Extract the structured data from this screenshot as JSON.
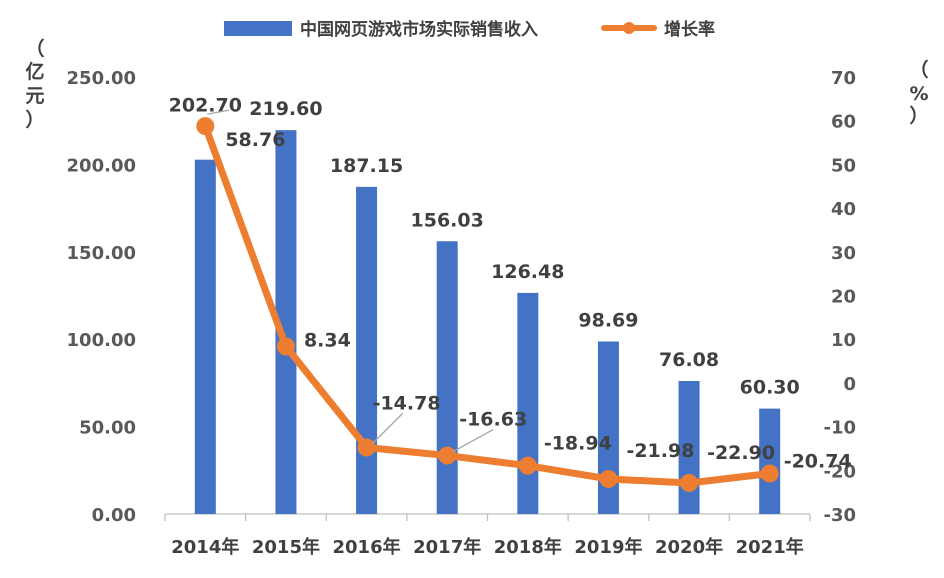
{
  "chart_data": {
    "type": "bar",
    "categories": [
      "2014年",
      "2015年",
      "2016年",
      "2017年",
      "2018年",
      "2019年",
      "2020年",
      "2021年"
    ],
    "series": [
      {
        "name": "中国网页游戏市场实际销售收入",
        "type": "bar",
        "axis": "left",
        "color": "#4472C4",
        "values": [
          202.7,
          219.6,
          187.15,
          156.03,
          126.48,
          98.69,
          76.08,
          60.3
        ],
        "labels": [
          "202.70",
          "219.60",
          "187.15",
          "156.03",
          "126.48",
          "98.69",
          "76.08",
          "60.30"
        ]
      },
      {
        "name": "增长率",
        "type": "line",
        "axis": "right",
        "color": "#ED7D31",
        "values": [
          58.76,
          8.34,
          -14.78,
          -16.63,
          -18.94,
          -21.98,
          -22.9,
          -20.74
        ],
        "labels": [
          "58.76",
          "8.34",
          "-14.78",
          "-16.63",
          "-18.94",
          "-21.98",
          "-22.90",
          "-20.74"
        ]
      }
    ],
    "y_left": {
      "unit": [
        "（",
        "亿",
        "元",
        "）"
      ],
      "range": [
        0,
        250
      ],
      "ticks": [
        "0.00",
        "50.00",
        "100.00",
        "150.00",
        "200.00",
        "250.00"
      ]
    },
    "y_right": {
      "unit": [
        "（",
        "%",
        "）"
      ],
      "range": [
        -30,
        70
      ],
      "ticks": [
        "-30",
        "-20",
        "-10",
        "0",
        "10",
        "20",
        "30",
        "40",
        "50",
        "60",
        "70"
      ]
    },
    "grid": false,
    "legend": "top-center"
  }
}
